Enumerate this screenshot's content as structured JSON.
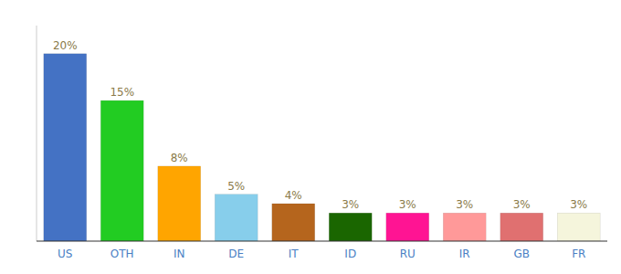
{
  "chart_data": {
    "type": "bar",
    "categories": [
      "US",
      "OTH",
      "IN",
      "DE",
      "IT",
      "ID",
      "RU",
      "IR",
      "GB",
      "FR"
    ],
    "values": [
      20,
      15,
      8,
      5,
      4,
      3,
      3,
      3,
      3,
      3
    ],
    "value_labels": [
      "20%",
      "15%",
      "8%",
      "5%",
      "4%",
      "3%",
      "3%",
      "3%",
      "3%",
      "3%"
    ],
    "colors": [
      "#4472c4",
      "#22cc22",
      "#ffa500",
      "#87ceeb",
      "#b5651d",
      "#1a6600",
      "#ff1493",
      "#ff9999",
      "#e07070",
      "#f5f5dc"
    ],
    "ylim": [
      0,
      23
    ],
    "data_labels": true,
    "tick_labels": "x",
    "grid": false
  }
}
